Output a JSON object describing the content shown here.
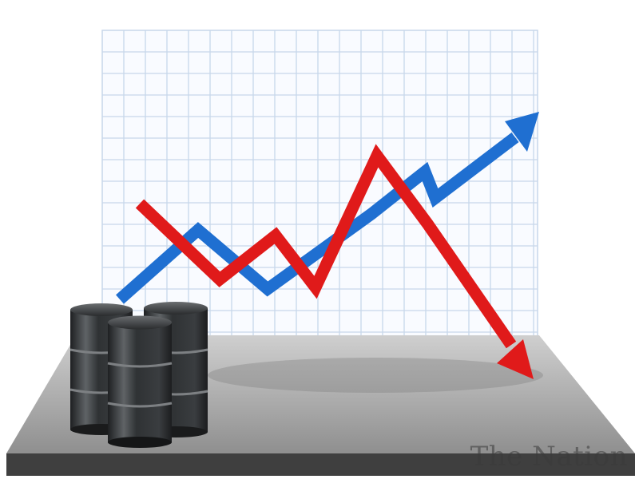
{
  "watermark": {
    "text": "The Nation"
  },
  "colors": {
    "grid_line": "#c7d7ea",
    "blue_arrow": "#1f6fd1",
    "red_arrow": "#e01a1a",
    "platform_top": "#9e9e9e",
    "platform_edge": "#3d3d3d",
    "barrel_body": "#2d2f31",
    "barrel_highlight": "#8a8d90"
  },
  "icons": {
    "up_trend": "blue-arrow-icon",
    "down_trend": "red-arrow-icon",
    "barrels": "oil-barrel-icon"
  }
}
